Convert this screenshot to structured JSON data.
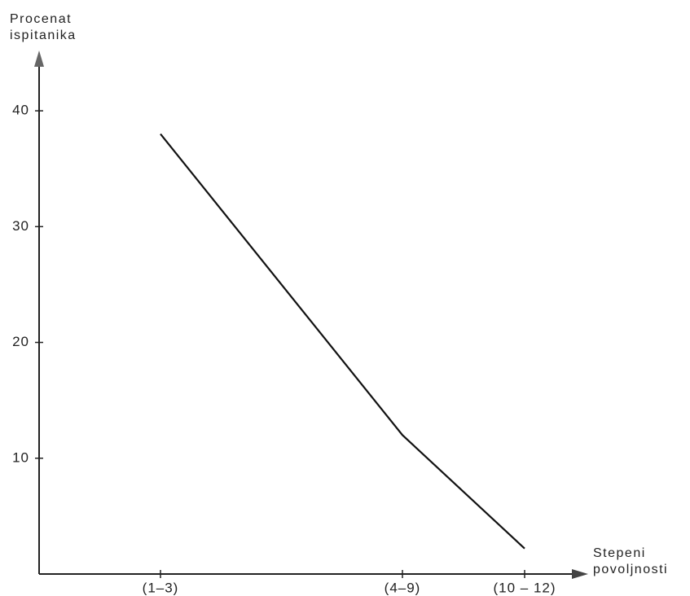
{
  "chart_data": {
    "type": "line",
    "y_label": "Procenat ispitanika",
    "x_label": "Stepeni povoljnosti",
    "categories": [
      "(1–3)",
      "(4–9)",
      "(10 – 12)"
    ],
    "values": [
      38,
      12,
      2.2
    ],
    "color": "#111111",
    "ylim": [
      0,
      45
    ],
    "yticks": [
      10,
      20,
      30,
      40
    ],
    "grid": false
  }
}
